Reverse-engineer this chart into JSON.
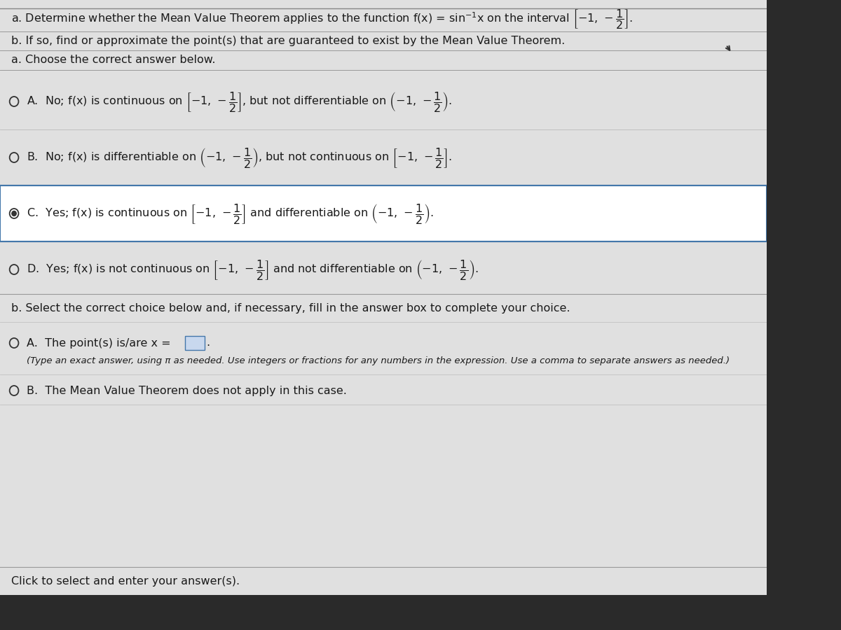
{
  "bg_color": "#c8c8c8",
  "content_bg": "#e0e0e0",
  "white_bg": "#ffffff",
  "text_color": "#1a1a1a",
  "dark_bar": "#2a2a2a",
  "separator_color": "#999999",
  "highlight_border": "#4477aa",
  "line1a": "a. Determine whether the Mean Value Theorem applies to the function f(x) = sin",
  "line1b": "⁻¹x on the interval",
  "line2": "b. If so, find or approximate the point(s) that are guaranteed to exist by the Mean Value Theorem.",
  "line3": "a. Choose the correct answer below.",
  "optA_text": "A.  No; f(x) is continuous on",
  "optA_mid": ", but not differentiable on",
  "optB_text": "B.  No; f(x) is differentiable on",
  "optB_mid": ", but not continuous on",
  "optC_text": "C.  Yes; f(x) is continuous on",
  "optC_mid": "and differentiable on",
  "optD_text": "D.  Yes; f(x) is not continuous on",
  "optD_mid": "and not differentiable on",
  "interval_closed": "[−1, −½]",
  "interval_open": "(−1, −½)",
  "part_b_header": "b. Select the correct choice below and, if necessary, fill in the answer box to complete your choice.",
  "boptA_text": "A.  The point(s) is/are x =",
  "boptA_subtext": "(Type an exact answer, using π as needed. Use integers or fractions for any numbers in the expression. Use a comma to separate answers as needed.)",
  "boptB_text": "B.  The Mean Value Theorem does not apply in this case.",
  "footer": "Click to select and enter your answer(s)."
}
